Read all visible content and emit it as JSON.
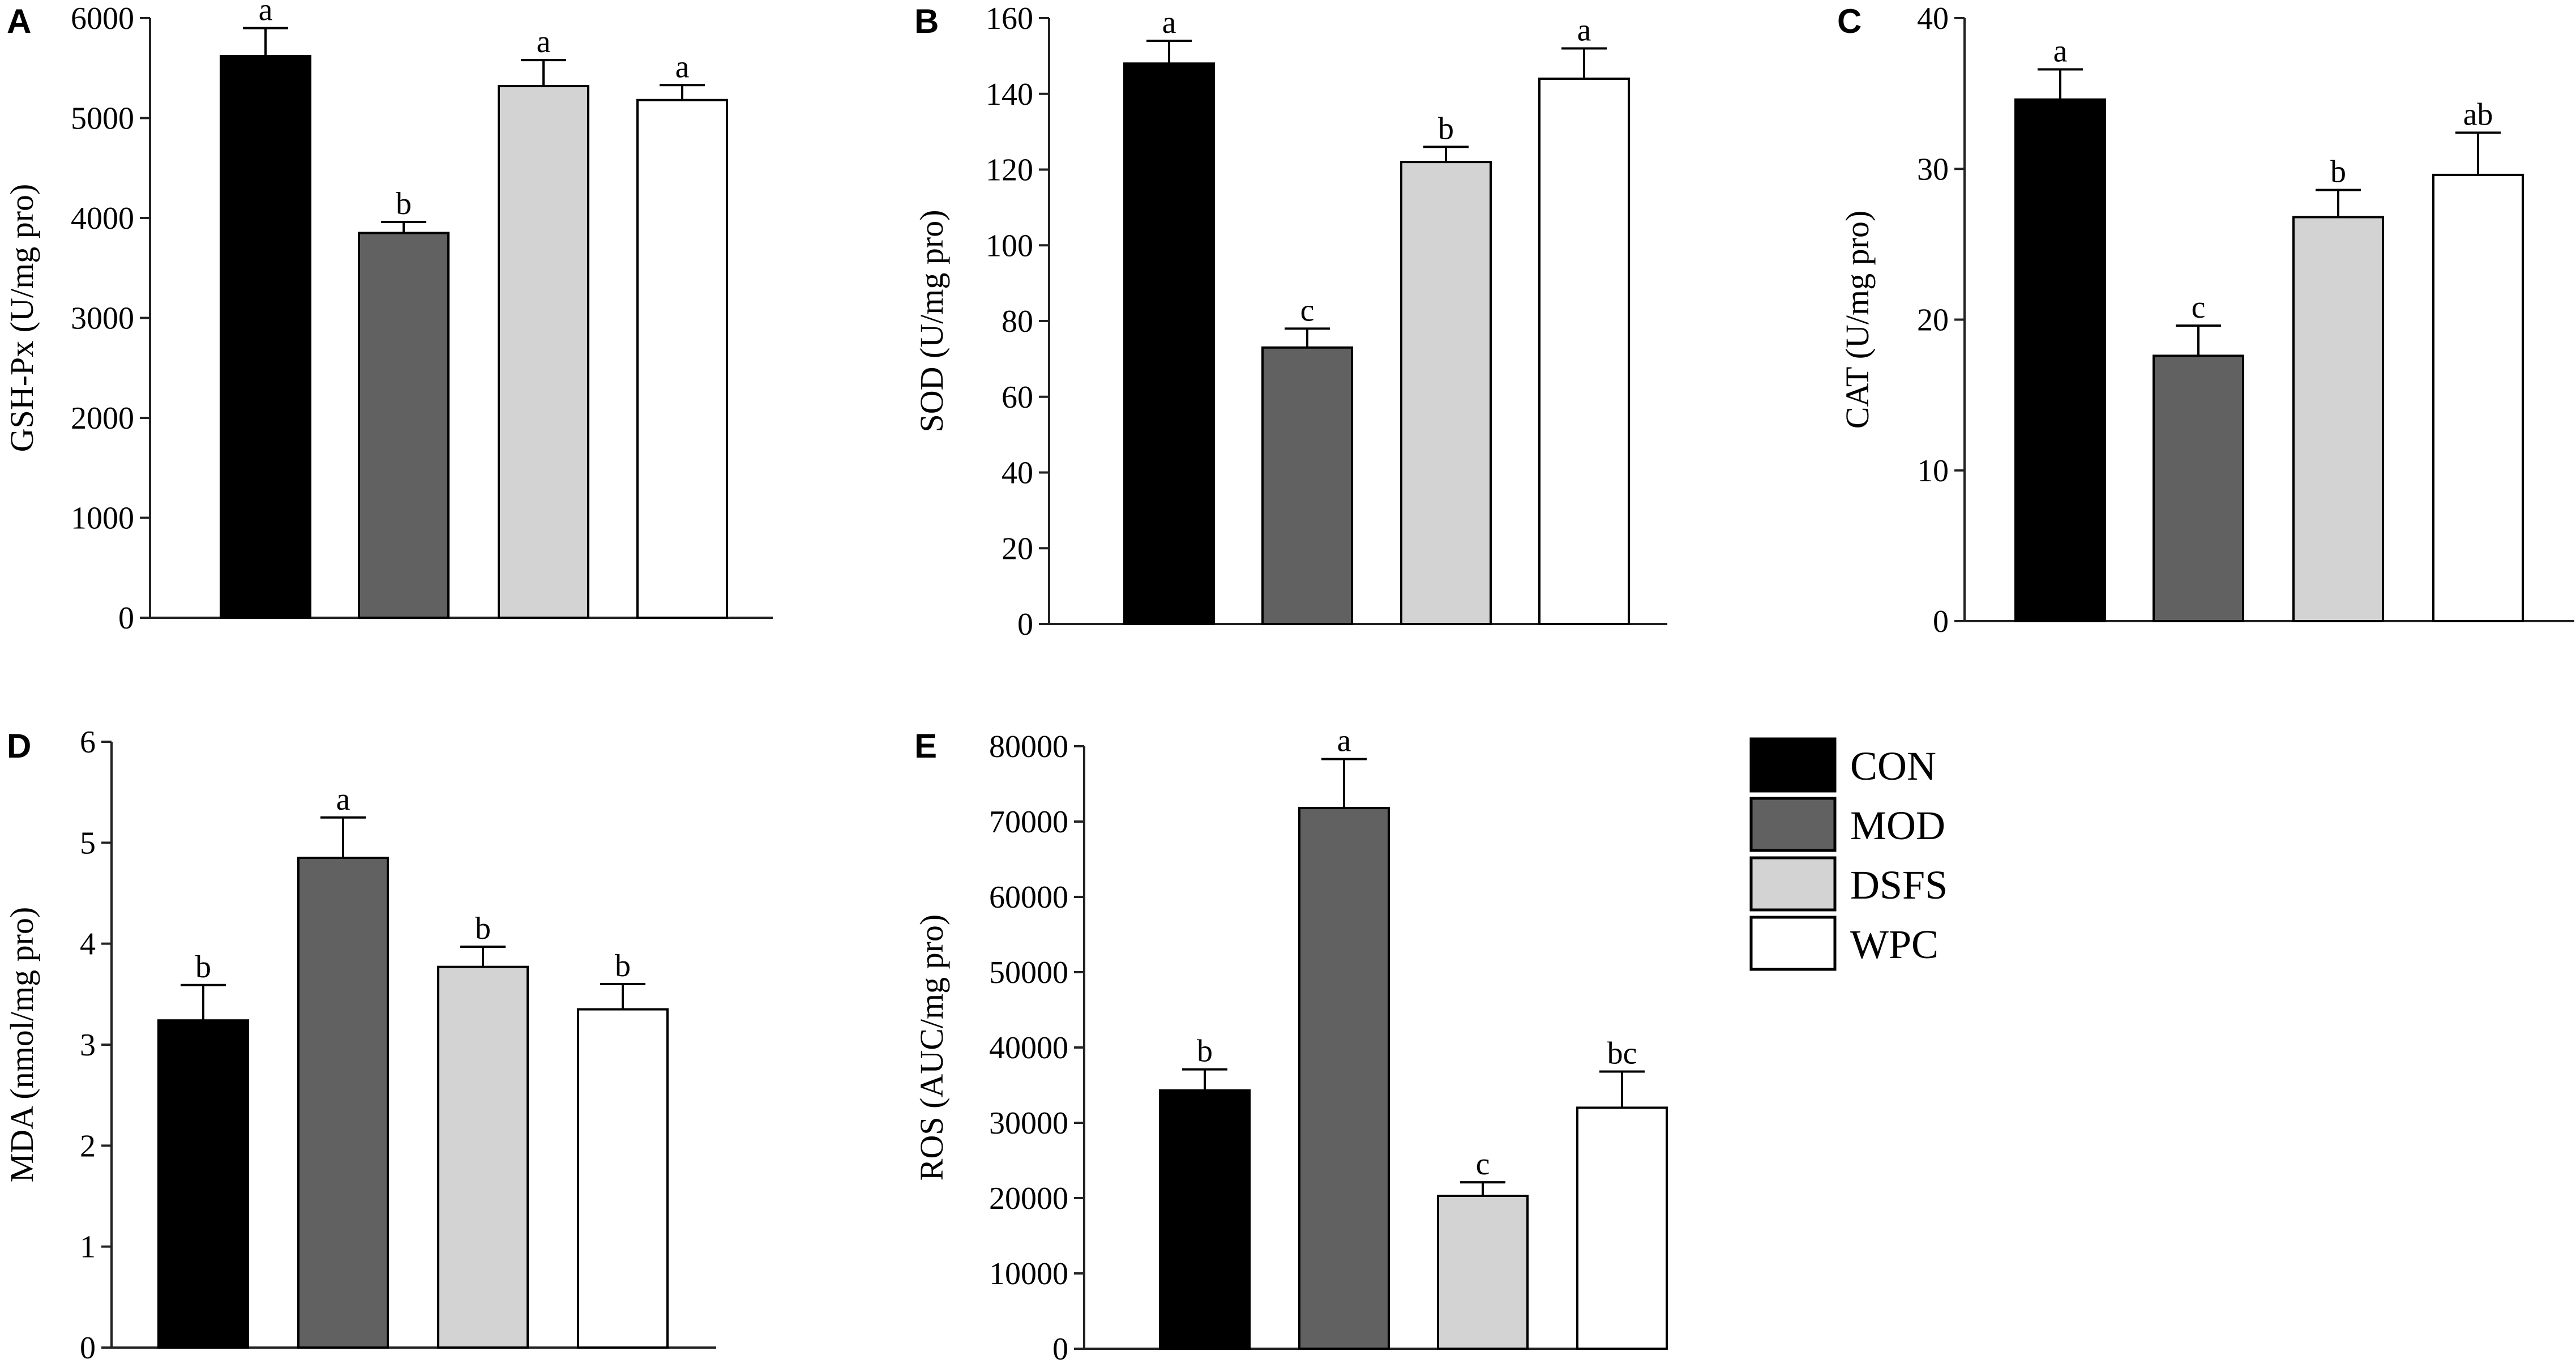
{
  "legend": {
    "items": [
      {
        "label": "CON",
        "color": "#000000"
      },
      {
        "label": "MOD",
        "color": "#616161"
      },
      {
        "label": "DSFS",
        "color": "#d3d3d3"
      },
      {
        "label": "WPC",
        "color": "#ffffff"
      }
    ]
  },
  "chart_data": [
    {
      "type": "bar",
      "panel": "A",
      "categories": [
        "CON",
        "MOD",
        "DSFS",
        "WPC"
      ],
      "values": [
        5620,
        3850,
        5320,
        5180
      ],
      "errors": [
        280,
        110,
        260,
        150
      ],
      "labels": [
        "a",
        "b",
        "a",
        "a"
      ],
      "ylabel": "GSH-Px (U/mg pro)",
      "ylim": [
        0,
        6000
      ],
      "yticks": [
        0,
        1000,
        2000,
        3000,
        4000,
        5000,
        6000
      ],
      "ytick_labels": [
        "0",
        "1000",
        "2000",
        "3000",
        "4000",
        "5000",
        "6000"
      ]
    },
    {
      "type": "bar",
      "panel": "B",
      "categories": [
        "CON",
        "MOD",
        "DSFS",
        "WPC"
      ],
      "values": [
        148,
        73,
        122,
        144
      ],
      "errors": [
        6,
        5,
        4,
        8
      ],
      "labels": [
        "a",
        "c",
        "b",
        "a"
      ],
      "ylabel": "SOD (U/mg pro)",
      "ylim": [
        0,
        160
      ],
      "yticks": [
        0,
        20,
        40,
        60,
        80,
        100,
        120,
        140,
        160
      ],
      "ytick_labels": [
        "0",
        "20",
        "40",
        "60",
        "80",
        "100",
        "120",
        "140",
        "160"
      ]
    },
    {
      "type": "bar",
      "panel": "C",
      "categories": [
        "CON",
        "MOD",
        "DSFS",
        "WPC"
      ],
      "values": [
        34.6,
        17.6,
        26.8,
        29.6
      ],
      "errors": [
        2.0,
        2.0,
        1.8,
        2.8
      ],
      "labels": [
        "a",
        "c",
        "b",
        "ab"
      ],
      "ylabel": "CAT (U/mg pro)",
      "ylim": [
        0,
        40
      ],
      "yticks": [
        0,
        10,
        20,
        30,
        40
      ],
      "ytick_labels": [
        "0",
        "10",
        "20",
        "30",
        "40"
      ]
    },
    {
      "type": "bar",
      "panel": "D",
      "categories": [
        "CON",
        "MOD",
        "DSFS",
        "WPC"
      ],
      "values": [
        3.24,
        4.85,
        3.77,
        3.35
      ],
      "errors": [
        0.35,
        0.4,
        0.2,
        0.25
      ],
      "labels": [
        "b",
        "a",
        "b",
        "b"
      ],
      "ylabel": "MDA (nmol/mg pro)",
      "ylim": [
        0,
        6
      ],
      "yticks": [
        0,
        1,
        2,
        3,
        4,
        5,
        6
      ],
      "ytick_labels": [
        "0",
        "1",
        "2",
        "3",
        "4",
        "5",
        "6"
      ]
    },
    {
      "type": "bar",
      "panel": "E",
      "categories": [
        "CON",
        "MOD",
        "DSFS",
        "WPC"
      ],
      "values": [
        34300,
        71800,
        20300,
        32000
      ],
      "errors": [
        2800,
        6500,
        1800,
        4800
      ],
      "labels": [
        "b",
        "a",
        "c",
        "bc"
      ],
      "ylabel": "ROS (AUC/mg pro)",
      "ylim": [
        0,
        80000
      ],
      "yticks": [
        0,
        10000,
        20000,
        30000,
        40000,
        50000,
        60000,
        70000,
        80000
      ],
      "ytick_labels": [
        "0",
        "10000",
        "20000",
        "30000",
        "40000",
        "50000",
        "60000",
        "70000",
        "80000"
      ]
    }
  ]
}
